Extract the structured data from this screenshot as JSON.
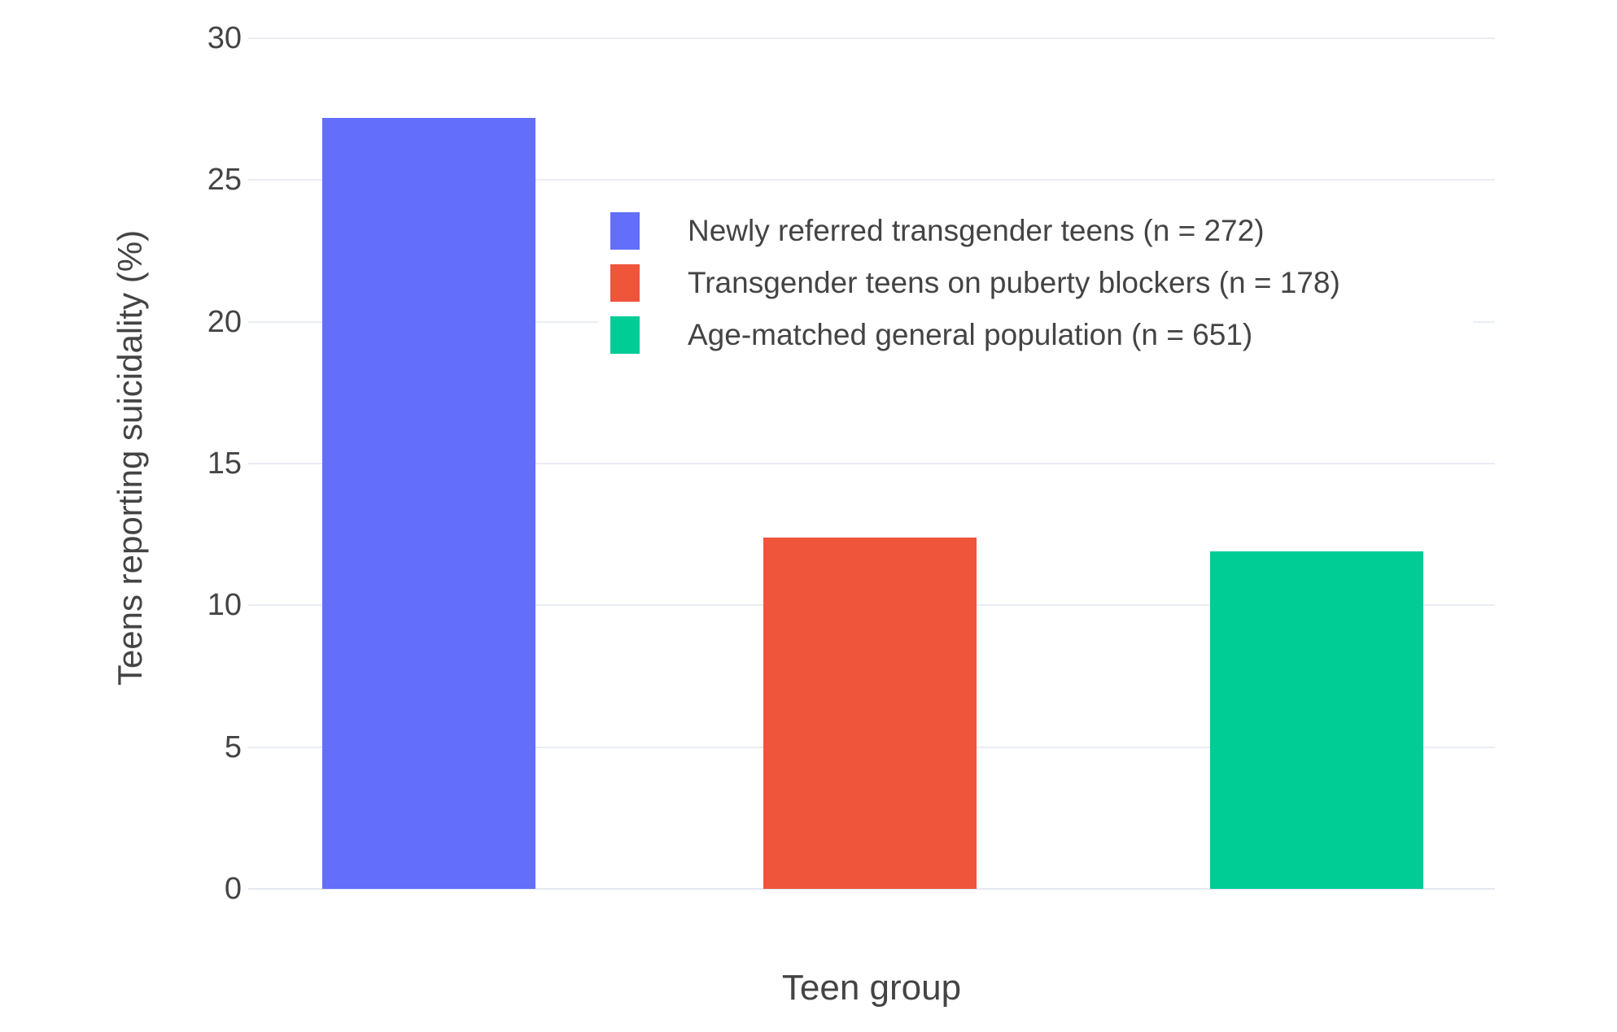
{
  "chart_data": {
    "type": "bar",
    "title": "",
    "xlabel": "Teen group",
    "ylabel": "Teens reporting suicidality (%)",
    "ylim": [
      0,
      30
    ],
    "yticks": [
      0,
      5,
      10,
      15,
      20,
      25,
      30
    ],
    "grid": true,
    "legend_position": "inside-top-center",
    "background_color": "#ffffff",
    "grid_color": "#e9ecf5",
    "text_color": "#444444",
    "categories": [
      "Newly referred transgender teens (n = 272)",
      "Transgender teens on puberty blockers (n = 178)",
      "Age-matched general population (n = 651)"
    ],
    "values": [
      27.2,
      12.4,
      11.9
    ],
    "series": [
      {
        "name": "Newly referred transgender teens (n = 272)",
        "value": 27.2,
        "color": "#636efa"
      },
      {
        "name": "Transgender teens on puberty blockers (n = 178)",
        "value": 12.4,
        "color": "#ef553b"
      },
      {
        "name": "Age-matched general population (n = 651)",
        "value": 11.9,
        "color": "#00cc96"
      }
    ]
  }
}
